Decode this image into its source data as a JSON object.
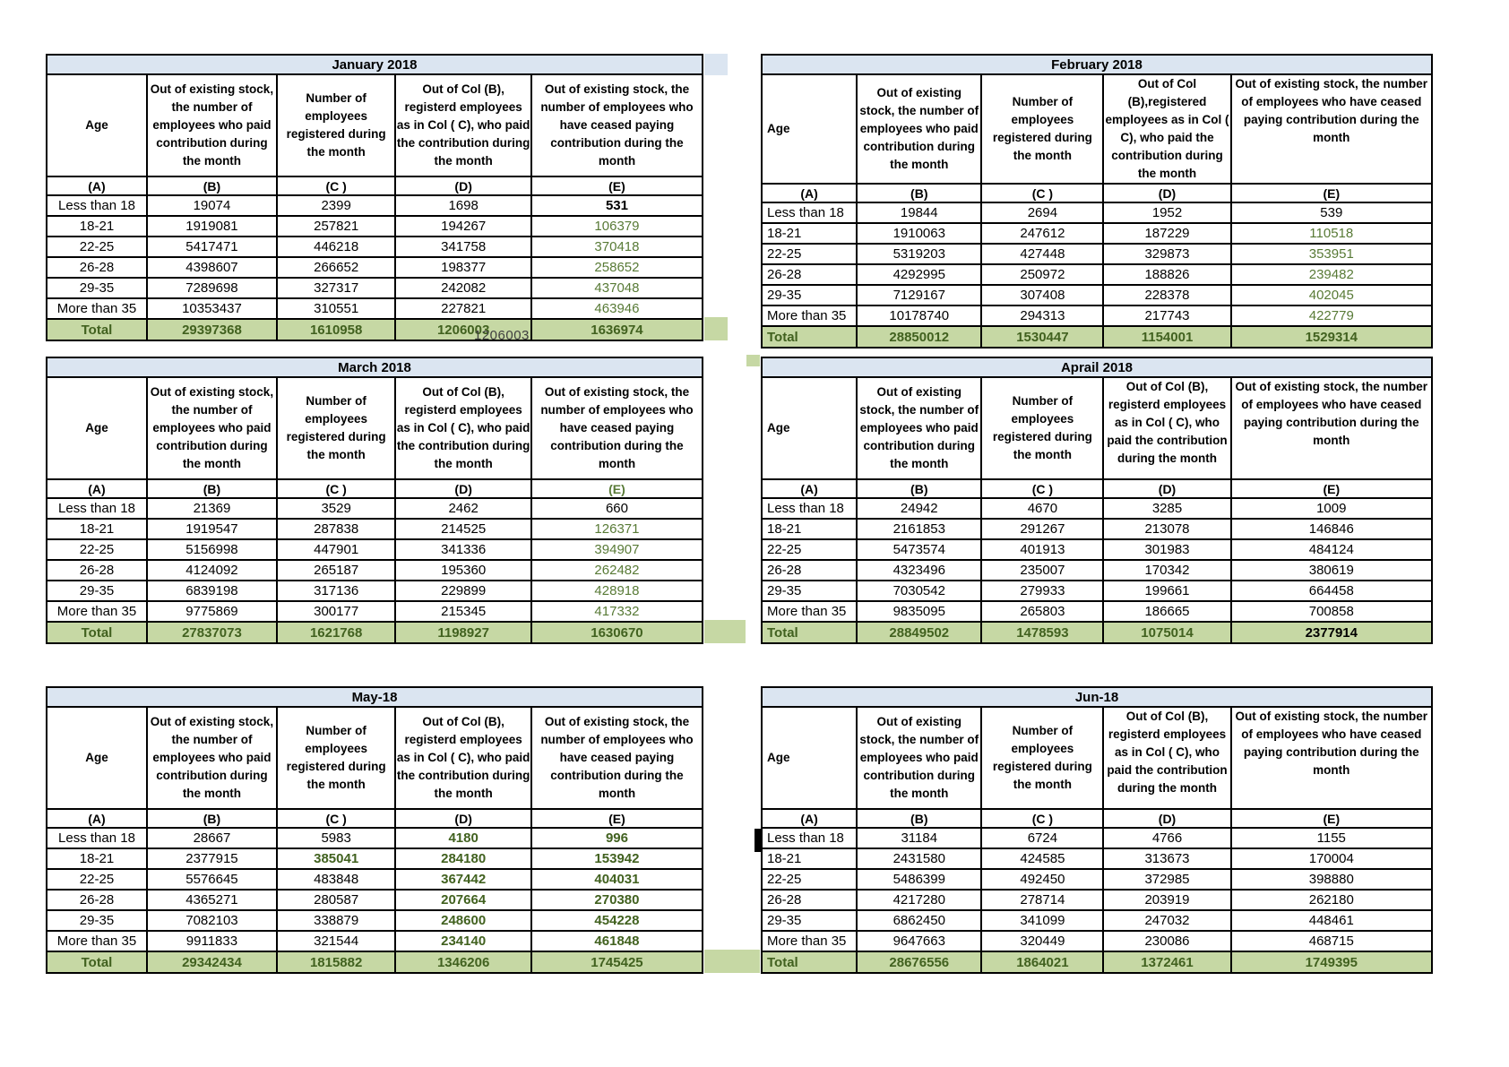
{
  "page": {
    "background": "#ffffff"
  },
  "colors": {
    "title_bg": "#dbe5f1",
    "total_bg": "#c6d8a4",
    "green_text": "#587a36",
    "green_bold_text": "#41611f",
    "border": "#000000"
  },
  "column_letters": [
    "(A)",
    "(B)",
    "(C )",
    "(D)",
    "(E)"
  ],
  "total_label": "Total",
  "artifacts": {
    "jan_total_overlap": "1206003"
  },
  "tables": [
    {
      "id": "january",
      "title": "January 2018",
      "side": "left",
      "headers": {
        "age": "Age",
        "b": "Out of existing stock, the number of employees who paid contribution during the month",
        "c": "Number of employees registered during the month",
        "d": "Out of Col (B), registerd employees as in Col ( C), who paid the contribution during the month",
        "e": "Out of existing stock, the number of  employees  who have ceased paying contribution during the month"
      },
      "letter_styles": {},
      "rows": [
        {
          "age": "Less than 18",
          "values": [
            "19074",
            "2399",
            "1698",
            "531"
          ],
          "styles": {
            "3": "bb"
          }
        },
        {
          "age": "18-21",
          "values": [
            "1919081",
            "257821",
            "194267",
            "106379"
          ],
          "styles": {
            "3": "g"
          }
        },
        {
          "age": "22-25",
          "values": [
            "5417471",
            "446218",
            "341758",
            "370418"
          ],
          "styles": {
            "3": "g"
          }
        },
        {
          "age": "26-28",
          "values": [
            "4398607",
            "266652",
            "198377",
            "258652"
          ],
          "styles": {
            "3": "g"
          }
        },
        {
          "age": "29-35",
          "values": [
            "7289698",
            "327317",
            "242082",
            "437048"
          ],
          "styles": {
            "3": "g"
          }
        },
        {
          "age": "More than 35",
          "values": [
            "10353437",
            "310551",
            "227821",
            "463946"
          ],
          "styles": {
            "3": "g"
          }
        }
      ],
      "total": [
        "29397368",
        "1610958",
        "1206003",
        "1636974"
      ],
      "total_styles": {}
    },
    {
      "id": "february",
      "title": "February 2018",
      "side": "right",
      "headers": {
        "age": "Age",
        "b": "Out of existing stock, the number of employees who paid contribution during the month",
        "c": "Number of employees registered during the month",
        "d": "Out of Col (B),registered employees as in Col ( C), who paid the contribution during the month",
        "e": "Out of existing stock, the number of employees  who have ceased paying contribution during the month"
      },
      "letter_styles": {},
      "rows": [
        {
          "age": "Less than 18",
          "values": [
            "19844",
            "2694",
            "1952",
            "539"
          ],
          "styles": {}
        },
        {
          "age": "18-21",
          "values": [
            "1910063",
            "247612",
            "187229",
            "110518"
          ],
          "styles": {
            "3": "g"
          }
        },
        {
          "age": "22-25",
          "values": [
            "5319203",
            "427448",
            "329873",
            "353951"
          ],
          "styles": {
            "3": "g"
          }
        },
        {
          "age": "26-28",
          "values": [
            "4292995",
            "250972",
            "188826",
            "239482"
          ],
          "styles": {
            "3": "g"
          }
        },
        {
          "age": "29-35",
          "values": [
            "7129167",
            "307408",
            "228378",
            "402045"
          ],
          "styles": {
            "3": "g"
          }
        },
        {
          "age": "More than 35",
          "values": [
            "10178740",
            "294313",
            "217743",
            "422779"
          ],
          "styles": {
            "3": "g"
          }
        }
      ],
      "total": [
        "28850012",
        "1530447",
        "1154001",
        "1529314"
      ],
      "total_styles": {}
    },
    {
      "id": "march",
      "title": "March 2018",
      "side": "left",
      "headers": {
        "age": "Age",
        "b": "Out of existing stock, the number of employees who paid contribution during the month",
        "c": "Number of employees registered during the month",
        "d": "Out of Col (B), registerd employees as in Col ( C), who paid the contribution during the month",
        "e": "Out of existing stock, the number of  employees  who have ceased paying contribution during the month"
      },
      "letter_styles": {
        "4": "g"
      },
      "rows": [
        {
          "age": "Less than 18",
          "values": [
            "21369",
            "3529",
            "2462",
            "660"
          ],
          "styles": {}
        },
        {
          "age": "18-21",
          "values": [
            "1919547",
            "287838",
            "214525",
            "126371"
          ],
          "styles": {
            "3": "g"
          }
        },
        {
          "age": "22-25",
          "values": [
            "5156998",
            "447901",
            "341336",
            "394907"
          ],
          "styles": {
            "3": "g"
          }
        },
        {
          "age": "26-28",
          "values": [
            "4124092",
            "265187",
            "195360",
            "262482"
          ],
          "styles": {
            "3": "g"
          }
        },
        {
          "age": "29-35",
          "values": [
            "6839198",
            "317136",
            "229899",
            "428918"
          ],
          "styles": {
            "3": "g"
          }
        },
        {
          "age": "More than 35",
          "values": [
            "9775869",
            "300177",
            "215345",
            "417332"
          ],
          "styles": {
            "3": "g"
          }
        }
      ],
      "total": [
        "27837073",
        "1621768",
        "1198927",
        "1630670"
      ],
      "total_styles": {}
    },
    {
      "id": "april",
      "title": "Aprail 2018",
      "side": "right",
      "headers": {
        "age": "Age",
        "b": "Out of existing stock, the number of employees who paid contribution during the month",
        "c": "Number of employees registered during the month",
        "d": "Out of Col (B), registerd employees as in Col ( C), who paid the contribution during the month",
        "e": "Out of existing stock, the number of employees  who have ceased paying contribution during the month"
      },
      "letter_styles": {},
      "rows": [
        {
          "age": "Less than 18",
          "values": [
            "24942",
            "4670",
            "3285",
            "1009"
          ],
          "styles": {}
        },
        {
          "age": "18-21",
          "values": [
            "2161853",
            "291267",
            "213078",
            "146846"
          ],
          "styles": {}
        },
        {
          "age": "22-25",
          "values": [
            "5473574",
            "401913",
            "301983",
            "484124"
          ],
          "styles": {}
        },
        {
          "age": "26-28",
          "values": [
            "4323496",
            "235007",
            "170342",
            "380619"
          ],
          "styles": {}
        },
        {
          "age": "29-35",
          "values": [
            "7030542",
            "279933",
            "199661",
            "664458"
          ],
          "styles": {}
        },
        {
          "age": "More than 35",
          "values": [
            "9835095",
            "265803",
            "186665",
            "700858"
          ],
          "styles": {}
        }
      ],
      "total": [
        "28849502",
        "1478593",
        "1075014",
        "2377914"
      ],
      "total_styles": {
        "3": "bb"
      }
    },
    {
      "id": "may",
      "title": "May-18",
      "side": "left",
      "headers": {
        "age": "Age",
        "b": "Out of existing stock, the number of employees who paid contribution during the month",
        "c": "Number of employees registered during the month",
        "d": "Out of Col (B), registerd employees as in Col ( C), who paid the contribution during the month",
        "e": "Out of existing stock, the number of  employees  who have ceased paying contribution during the month"
      },
      "letter_styles": {},
      "rows": [
        {
          "age": "Less than 18",
          "values": [
            "28667",
            "5983",
            "4180",
            "996"
          ],
          "styles": {
            "2": "gb",
            "3": "gb"
          }
        },
        {
          "age": "18-21",
          "values": [
            "2377915",
            "385041",
            "284180",
            "153942"
          ],
          "styles": {
            "1": "gb",
            "2": "gb",
            "3": "gb"
          }
        },
        {
          "age": "22-25",
          "values": [
            "5576645",
            "483848",
            "367442",
            "404031"
          ],
          "styles": {
            "2": "gb",
            "3": "gb"
          }
        },
        {
          "age": "26-28",
          "values": [
            "4365271",
            "280587",
            "207664",
            "270380"
          ],
          "styles": {
            "2": "gb",
            "3": "gb"
          }
        },
        {
          "age": "29-35",
          "values": [
            "7082103",
            "338879",
            "248600",
            "454228"
          ],
          "styles": {
            "2": "gb",
            "3": "gb"
          }
        },
        {
          "age": "More than 35",
          "values": [
            "9911833",
            "321544",
            "234140",
            "461848"
          ],
          "styles": {
            "2": "gb",
            "3": "gb"
          }
        }
      ],
      "total": [
        "29342434",
        "1815882",
        "1346206",
        "1745425"
      ],
      "total_styles": {}
    },
    {
      "id": "june",
      "title": "Jun-18",
      "side": "right",
      "headers": {
        "age": "Age",
        "b": "Out of existing stock, the number of employees who paid contribution during the month",
        "c": "Number of employees registered during the month",
        "d": "Out of Col (B), registerd employees as in Col ( C), who paid the contribution during the month",
        "e": "Out of existing stock, the number of employees  who have ceased paying contribution during the month"
      },
      "letter_styles": {},
      "rows": [
        {
          "age": "Less than 18",
          "values": [
            "31184",
            "6724",
            "4766",
            "1155"
          ],
          "styles": {}
        },
        {
          "age": "18-21",
          "values": [
            "2431580",
            "424585",
            "313673",
            "170004"
          ],
          "styles": {}
        },
        {
          "age": "22-25",
          "values": [
            "5486399",
            "492450",
            "372985",
            "398880"
          ],
          "styles": {}
        },
        {
          "age": "26-28",
          "values": [
            "4217280",
            "278714",
            "203919",
            "262180"
          ],
          "styles": {}
        },
        {
          "age": "29-35",
          "values": [
            "6862450",
            "341099",
            "247032",
            "448461"
          ],
          "styles": {}
        },
        {
          "age": "More than 35",
          "values": [
            "9647663",
            "320449",
            "230086",
            "468715"
          ],
          "styles": {}
        }
      ],
      "total": [
        "28676556",
        "1864021",
        "1372461",
        "1749395"
      ],
      "total_styles": {}
    }
  ]
}
